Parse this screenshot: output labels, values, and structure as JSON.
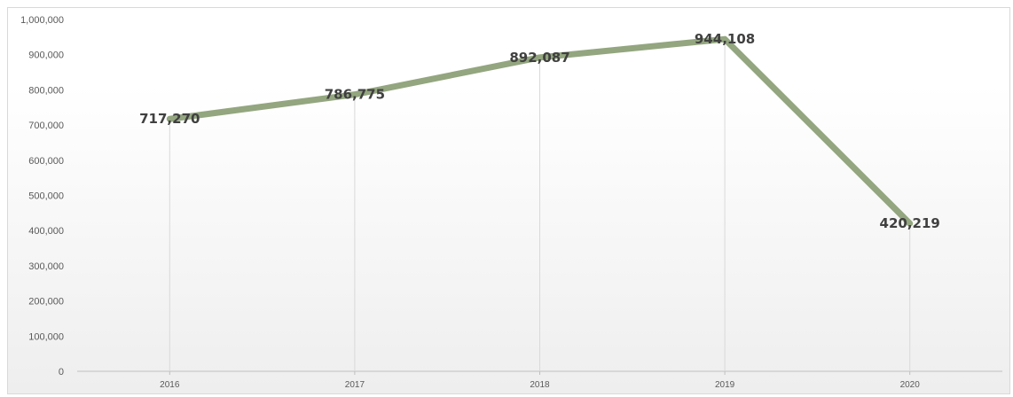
{
  "chart_data": {
    "type": "line",
    "title": "",
    "xlabel": "",
    "ylabel": "",
    "categories": [
      "2016",
      "2017",
      "2018",
      "2019",
      "2020"
    ],
    "series": [
      {
        "values": [
          717270,
          786775,
          892087,
          944108,
          420219
        ]
      }
    ],
    "data_labels": [
      "717,270",
      "786,775",
      "892,087",
      "944,108",
      "420,219"
    ],
    "ylim": [
      0,
      1000000
    ],
    "yticks": [
      0,
      100000,
      200000,
      300000,
      400000,
      500000,
      600000,
      700000,
      800000,
      900000,
      1000000
    ],
    "ytick_labels": [
      "0",
      "100,000",
      "200,000",
      "300,000",
      "400,000",
      "500,000",
      "600,000",
      "700,000",
      "800,000",
      "900,000",
      "1,000,000"
    ],
    "vertical_drop_lines": true,
    "legend": "none",
    "colors": {
      "line": "#93a67f",
      "drop_line": "#d9d9d9",
      "axis": "#bfbfbf",
      "text": "#595959",
      "label": "#404040"
    }
  }
}
